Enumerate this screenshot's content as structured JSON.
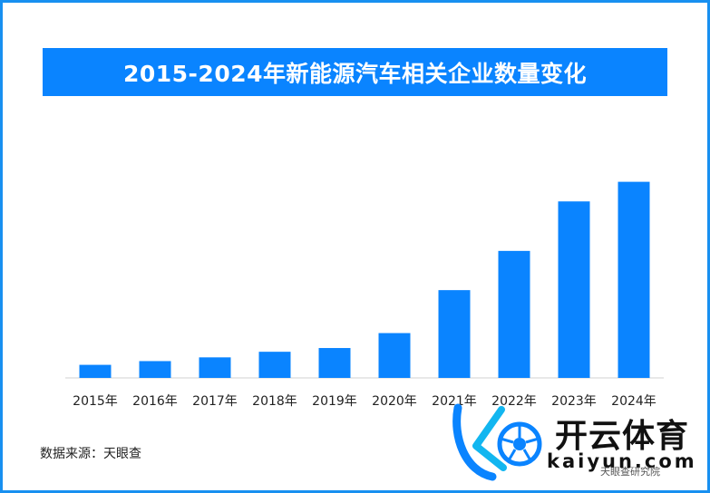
{
  "title": "2015-2024年新能源汽车相关企业数量变化",
  "source": "数据来源：天眼查",
  "watermark": {
    "brand": "开云体育",
    "url": "kaiyun.com",
    "sub": "天眼查研究院"
  },
  "colors": {
    "bar": "#0a84ff",
    "title_bg": "#0a84ff",
    "border": "#1890f0",
    "axis": "#d0d0d0"
  },
  "chart_data": {
    "type": "bar",
    "categories": [
      "2015年",
      "2016年",
      "2017年",
      "2018年",
      "2019年",
      "2020年",
      "2021年",
      "2022年",
      "2023年",
      "2024年"
    ],
    "values": [
      14,
      18,
      22,
      28,
      32,
      48,
      94,
      136,
      189,
      210
    ],
    "title": "2015-2024年新能源汽车相关企业数量变化",
    "xlabel": "",
    "ylabel": "",
    "ylim": [
      0,
      230
    ],
    "grid": false,
    "legend": "none"
  }
}
